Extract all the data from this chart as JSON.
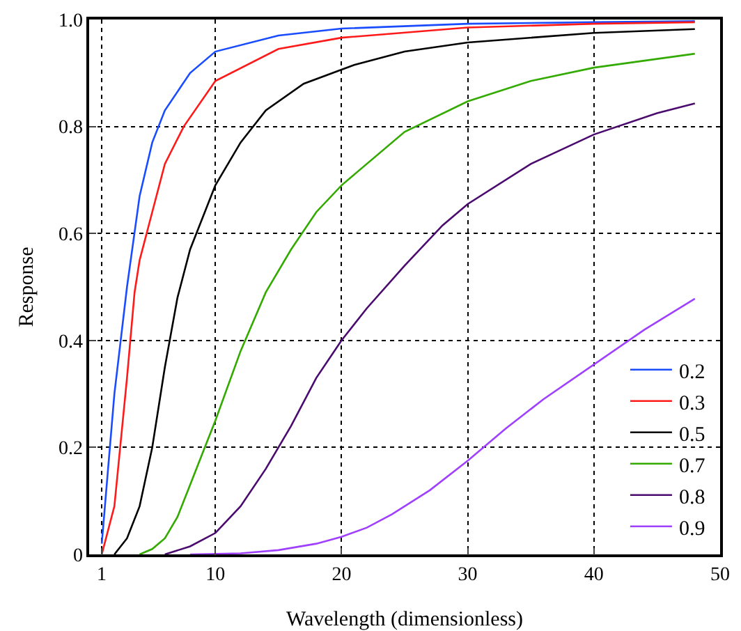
{
  "chart_data": {
    "type": "line",
    "xlabel": "Wavelength (dimensionless)",
    "ylabel": "Response",
    "xlim": [
      0,
      50
    ],
    "xticks": [
      1,
      10,
      20,
      30,
      40,
      50
    ],
    "ylim": [
      0,
      1
    ],
    "yticks": [
      0,
      0.2,
      0.4,
      0.6,
      0.8,
      {
        "value": 1,
        "label": "1.0"
      }
    ],
    "grid": true,
    "legend": "bottom right",
    "marker": "none",
    "line_style": "solid",
    "series": [
      {
        "name": "0.2",
        "color": "#1a4cff",
        "x": [
          1,
          2,
          3,
          4,
          5,
          6,
          8,
          10,
          15,
          20,
          30,
          40,
          48
        ],
        "values": [
          0.02,
          0.3,
          0.5,
          0.67,
          0.77,
          0.83,
          0.9,
          0.94,
          0.97,
          0.983,
          0.992,
          0.995,
          0.997
        ]
      },
      {
        "name": "0.3",
        "color": "#ff1a1a",
        "x": [
          1,
          2,
          3,
          3.6,
          4,
          5,
          6,
          7.5,
          10,
          15,
          20,
          30,
          40,
          48
        ],
        "values": [
          0,
          0.09,
          0.33,
          0.49,
          0.55,
          0.64,
          0.73,
          0.8,
          0.885,
          0.945,
          0.966,
          0.985,
          0.992,
          0.995
        ]
      },
      {
        "name": "0.5",
        "color": "#000000",
        "x": [
          2,
          3,
          4,
          5,
          6,
          7,
          8,
          10,
          12,
          14,
          17,
          21,
          25,
          30,
          40,
          48
        ],
        "values": [
          0,
          0.03,
          0.09,
          0.2,
          0.35,
          0.48,
          0.57,
          0.69,
          0.77,
          0.83,
          0.88,
          0.915,
          0.94,
          0.957,
          0.975,
          0.982
        ]
      },
      {
        "name": "0.7",
        "color": "#33aa00",
        "x": [
          4,
          5,
          6,
          7,
          8,
          9,
          10,
          12,
          14,
          16,
          18,
          20,
          25,
          30,
          35,
          40,
          48
        ],
        "values": [
          0,
          0.01,
          0.03,
          0.07,
          0.13,
          0.19,
          0.25,
          0.38,
          0.49,
          0.57,
          0.64,
          0.69,
          0.79,
          0.847,
          0.885,
          0.91,
          0.936
        ]
      },
      {
        "name": "0.8",
        "color": "#4b0a6e",
        "x": [
          6,
          8,
          10,
          12,
          14,
          16,
          18,
          20,
          22,
          25,
          28,
          30,
          35,
          40,
          45,
          48
        ],
        "values": [
          0,
          0.015,
          0.04,
          0.09,
          0.16,
          0.24,
          0.33,
          0.4,
          0.46,
          0.54,
          0.615,
          0.655,
          0.73,
          0.785,
          0.825,
          0.843
        ]
      },
      {
        "name": "0.9",
        "color": "#a040ff",
        "x": [
          8,
          12,
          15,
          18,
          20,
          22,
          24,
          27,
          30,
          33,
          36,
          40,
          44,
          48
        ],
        "values": [
          0,
          0.002,
          0.008,
          0.02,
          0.033,
          0.05,
          0.075,
          0.12,
          0.175,
          0.235,
          0.29,
          0.355,
          0.42,
          0.478
        ]
      }
    ]
  }
}
